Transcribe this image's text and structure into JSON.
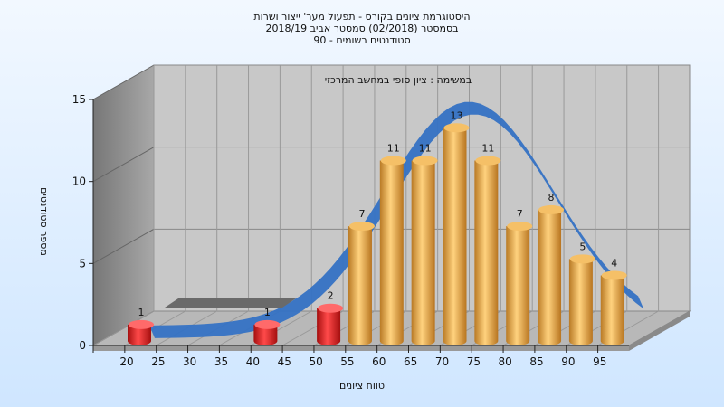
{
  "chart_data": {
    "type": "bar",
    "title_lines": [
      "היסטוגרמת ציונים בקורס - תפעול מער' ייצור ושרות",
      "בסמסטר  (02/2018)  סמסטר אביב 2018/19",
      "סטודנטים רשומים - 90"
    ],
    "subtitle": "במשימה : ציון סופי במחשב המרכזי",
    "xlabel": "טווח ציונים",
    "ylabel": "מספר סטודנטים",
    "categories": [
      "20",
      "25",
      "30",
      "35",
      "40",
      "45",
      "50",
      "55",
      "60",
      "65",
      "70",
      "75",
      "80",
      "85",
      "90",
      "95"
    ],
    "values": [
      1,
      0,
      0,
      0,
      1,
      0,
      2,
      7,
      11,
      11,
      13,
      11,
      7,
      8,
      5,
      4
    ],
    "data_labels": [
      "1",
      "",
      "",
      "",
      "1",
      "",
      "2",
      "7",
      "11",
      "11",
      "13",
      "11",
      "7",
      "8",
      "5",
      "4"
    ],
    "y_ticks": [
      "0",
      "5",
      "10",
      "15"
    ],
    "ylim": [
      0,
      15
    ],
    "grid": true,
    "low_grade_color": "#e31b1b",
    "bar_color": "#e8a850",
    "curve_color": "#3572c4",
    "wall_color": "#9e9e9e",
    "plot_color": "#c8c8c8"
  }
}
